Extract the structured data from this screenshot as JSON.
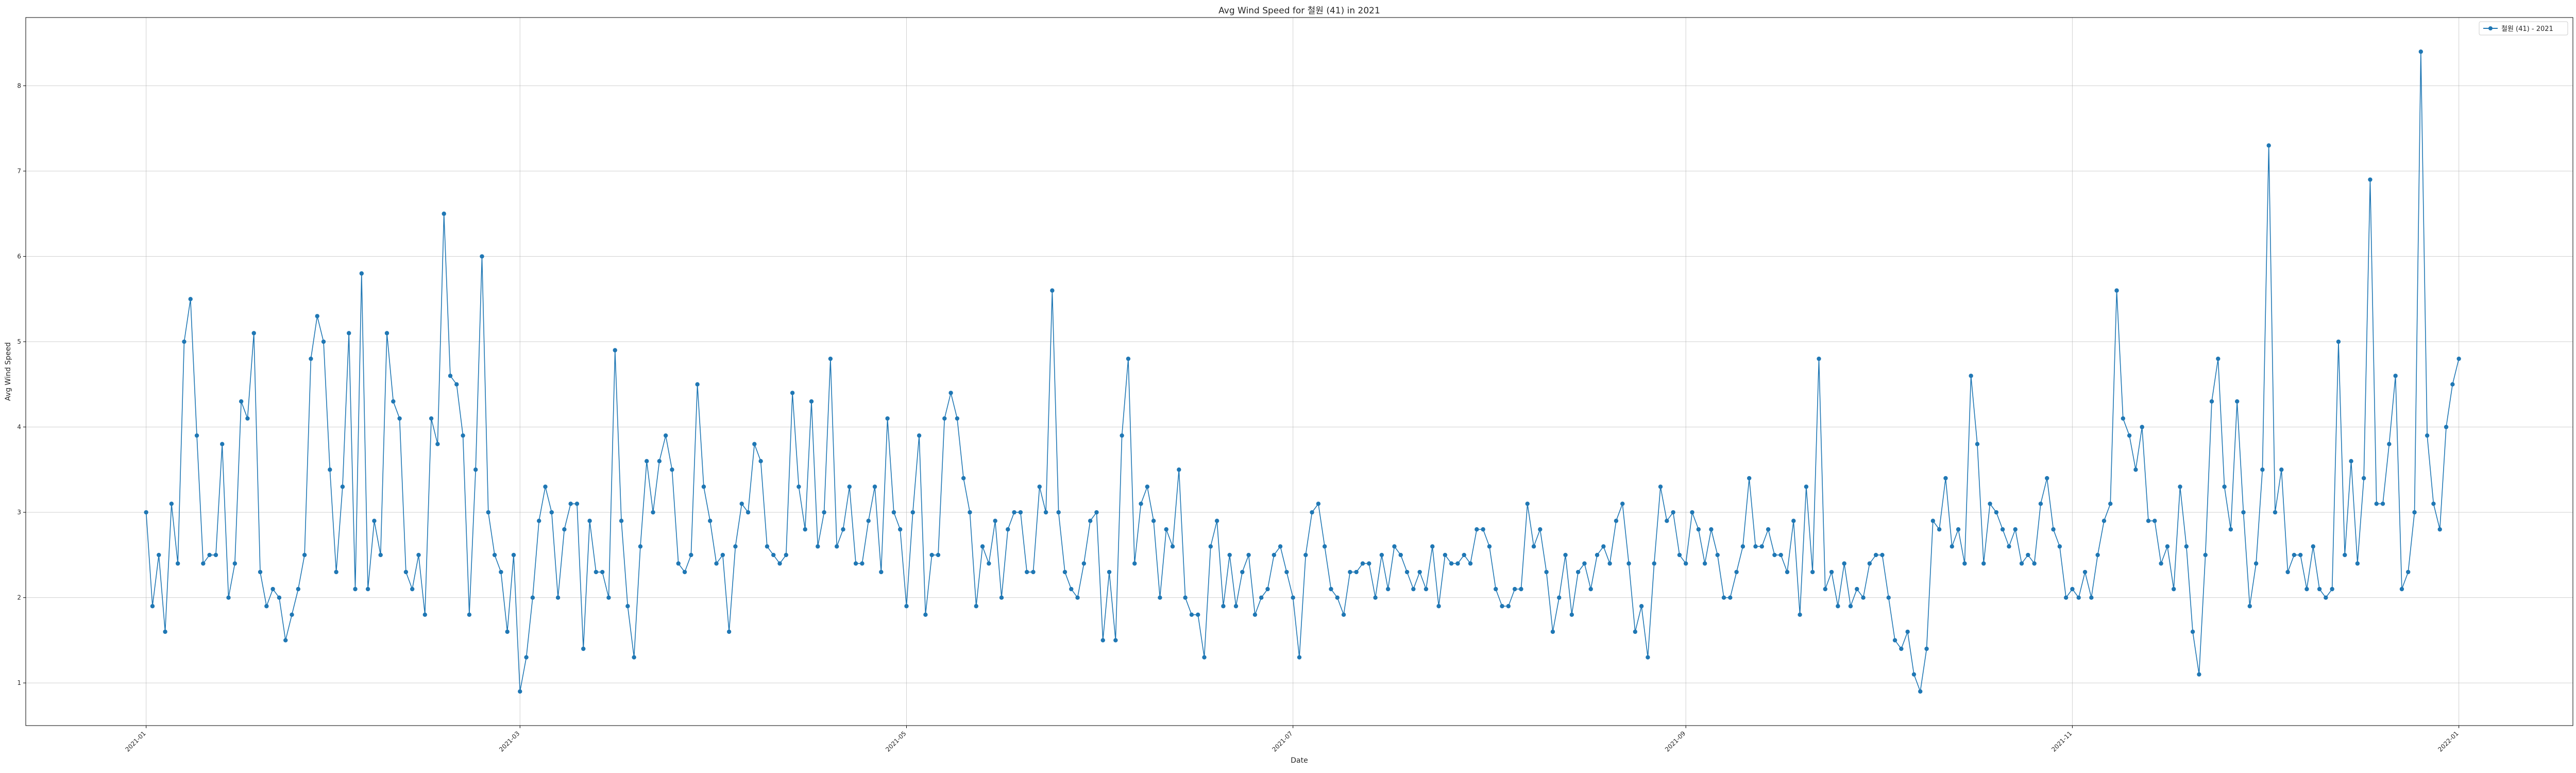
{
  "chart_data": {
    "type": "line",
    "title": "Avg Wind Speed for 철원 (41) in 2021",
    "xlabel": "Date",
    "ylabel": "Avg Wind Speed",
    "x_ticks": [
      "2021-01",
      "2021-03",
      "2021-05",
      "2021-07",
      "2021-09",
      "2021-11",
      "2022-01"
    ],
    "y_ticks": [
      1,
      2,
      3,
      4,
      5,
      6,
      7,
      8
    ],
    "xlim": [
      "2020-12-13",
      "2022-01-19"
    ],
    "ylim": [
      0.5,
      8.8
    ],
    "grid": true,
    "legend_position": "top-right",
    "x_start": "2021-01-01",
    "x_step": "1 day",
    "series": [
      {
        "name": "철원 (41) - 2021",
        "color": "#1f77b4",
        "marker": "circle",
        "values": [
          3.0,
          1.9,
          2.5,
          1.6,
          3.1,
          2.4,
          5.0,
          5.5,
          3.9,
          2.4,
          2.5,
          2.5,
          3.8,
          2.0,
          2.4,
          4.3,
          4.1,
          5.1,
          2.3,
          1.9,
          2.1,
          2.0,
          1.5,
          1.8,
          2.1,
          2.5,
          4.8,
          5.3,
          5.0,
          3.5,
          2.3,
          3.3,
          5.1,
          2.1,
          5.8,
          2.1,
          2.9,
          2.5,
          5.1,
          4.3,
          4.1,
          2.3,
          2.1,
          2.5,
          1.8,
          4.1,
          3.8,
          6.5,
          4.6,
          4.5,
          3.9,
          1.8,
          3.5,
          6.0,
          3.0,
          2.5,
          2.3,
          1.6,
          2.5,
          0.9,
          1.3,
          2.0,
          2.9,
          3.3,
          3.0,
          2.0,
          2.8,
          3.1,
          3.1,
          1.4,
          2.9,
          2.3,
          2.3,
          2.0,
          4.9,
          2.9,
          1.9,
          1.3,
          2.6,
          3.6,
          3.0,
          3.6,
          3.9,
          3.5,
          2.4,
          2.3,
          2.5,
          4.5,
          3.3,
          2.9,
          2.4,
          2.5,
          1.6,
          2.6,
          3.1,
          3.0,
          3.8,
          3.6,
          2.6,
          2.5,
          2.4,
          2.5,
          4.4,
          3.3,
          2.8,
          4.3,
          2.6,
          3.0,
          4.8,
          2.6,
          2.8,
          3.3,
          2.4,
          2.4,
          2.9,
          3.3,
          2.3,
          4.1,
          3.0,
          2.8,
          1.9,
          3.0,
          3.9,
          1.8,
          2.5,
          2.5,
          4.1,
          4.4,
          4.1,
          3.4,
          3.0,
          1.9,
          2.6,
          2.4,
          2.9,
          2.0,
          2.8,
          3.0,
          3.0,
          2.3,
          2.3,
          3.3,
          3.0,
          5.6,
          3.0,
          2.3,
          2.1,
          2.0,
          2.4,
          2.9,
          3.0,
          1.5,
          2.3,
          1.5,
          3.9,
          4.8,
          2.4,
          3.1,
          3.3,
          2.9,
          2.0,
          2.8,
          2.6,
          3.5,
          2.0,
          1.8,
          1.8,
          1.3,
          2.6,
          2.9,
          1.9,
          2.5,
          1.9,
          2.3,
          2.5,
          1.8,
          2.0,
          2.1,
          2.5,
          2.6,
          2.3,
          2.0,
          1.3,
          2.5,
          3.0,
          3.1,
          2.6,
          2.1,
          2.0,
          1.8,
          2.3,
          2.3,
          2.4,
          2.4,
          2.0,
          2.5,
          2.1,
          2.6,
          2.5,
          2.3,
          2.1,
          2.3,
          2.1,
          2.6,
          1.9,
          2.5,
          2.4,
          2.4,
          2.5,
          2.4,
          2.8,
          2.8,
          2.6,
          2.1,
          1.9,
          1.9,
          2.1,
          2.1,
          3.1,
          2.6,
          2.8,
          2.3,
          1.6,
          2.0,
          2.5,
          1.8,
          2.3,
          2.4,
          2.1,
          2.5,
          2.6,
          2.4,
          2.9,
          3.1,
          2.4,
          1.6,
          1.9,
          1.3,
          2.4,
          3.3,
          2.9,
          3.0,
          2.5,
          2.4,
          3.0,
          2.8,
          2.4,
          2.8,
          2.5,
          2.0,
          2.0,
          2.3,
          2.6,
          3.4,
          2.6,
          2.6,
          2.8,
          2.5,
          2.5,
          2.3,
          2.9,
          1.8,
          3.3,
          2.3,
          4.8,
          2.1,
          2.3,
          1.9,
          2.4,
          1.9,
          2.1,
          2.0,
          2.4,
          2.5,
          2.5,
          2.0,
          1.5,
          1.4,
          1.6,
          1.1,
          0.9,
          1.4,
          2.9,
          2.8,
          3.4,
          2.6,
          2.8,
          2.4,
          4.6,
          3.8,
          2.4,
          3.1,
          3.0,
          2.8,
          2.6,
          2.8,
          2.4,
          2.5,
          2.4,
          3.1,
          3.4,
          2.8,
          2.6,
          2.0,
          2.1,
          2.0,
          2.3,
          2.0,
          2.5,
          2.9,
          3.1,
          5.6,
          4.1,
          3.9,
          3.5,
          4.0,
          2.9,
          2.9,
          2.4,
          2.6,
          2.1,
          3.3,
          2.6,
          1.6,
          1.1,
          2.5,
          4.3,
          4.8,
          3.3,
          2.8,
          4.3,
          3.0,
          1.9,
          2.4,
          3.5,
          7.3,
          3.0,
          3.5,
          2.3,
          2.5,
          2.5,
          2.1,
          2.6,
          2.1,
          2.0,
          2.1,
          5.0,
          2.5,
          3.6,
          2.4,
          3.4,
          6.9,
          3.1,
          3.1,
          3.8,
          4.6,
          2.1,
          2.3,
          3.0,
          8.4,
          3.9,
          3.1,
          2.8,
          4.0,
          4.5,
          4.8
        ]
      }
    ]
  }
}
